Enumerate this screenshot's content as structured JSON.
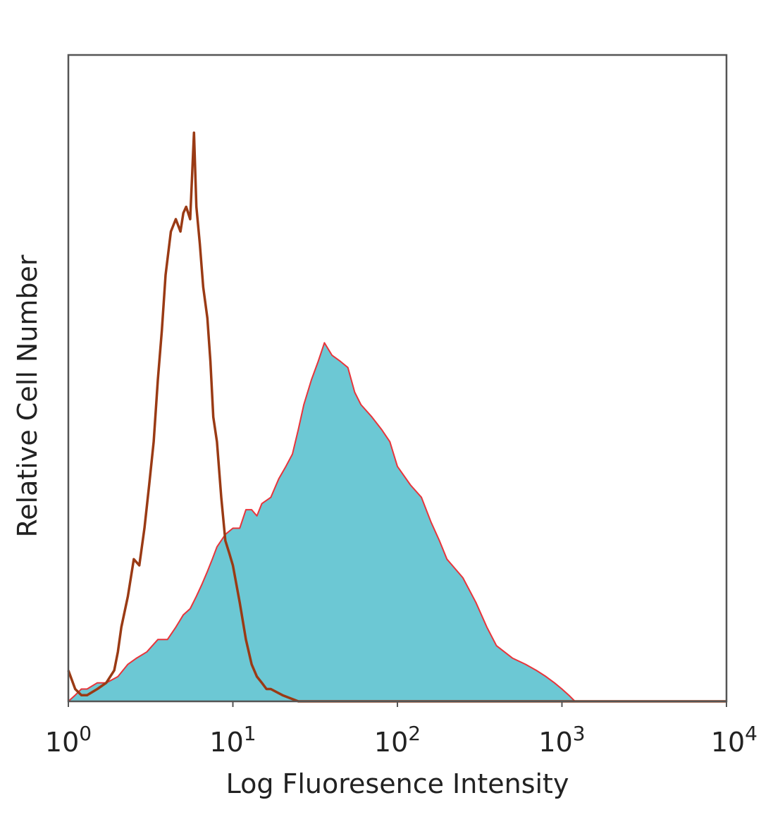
{
  "chart_data": {
    "type": "area",
    "title": "",
    "xlabel": "Log Fluoresence Intensity",
    "ylabel": "Relative Cell Number",
    "x_scale": "log",
    "xlim": [
      1,
      10000
    ],
    "ylim": [
      0,
      1
    ],
    "grid": false,
    "legend": "none",
    "x_ticks": [
      {
        "value": 1,
        "base": "10",
        "exp": "0"
      },
      {
        "value": 10,
        "base": "10",
        "exp": "1"
      },
      {
        "value": 100,
        "base": "10",
        "exp": "2"
      },
      {
        "value": 1000,
        "base": "10",
        "exp": "3"
      },
      {
        "value": 10000,
        "base": "10",
        "exp": "4"
      }
    ],
    "series": [
      {
        "style": "filled",
        "fill_color": "#6cc8d4",
        "line_color": "#e8343a",
        "x": [
          1.0,
          1.1,
          1.2,
          1.3,
          1.5,
          1.7,
          2.0,
          2.3,
          2.6,
          3.0,
          3.5,
          4.0,
          4.5,
          5.0,
          5.5,
          6.0,
          6.5,
          7.0,
          7.5,
          8.0,
          9.0,
          10,
          11,
          12,
          13,
          14,
          15,
          17,
          19,
          21,
          23,
          25,
          27,
          30,
          33,
          36,
          40,
          45,
          50,
          55,
          60,
          70,
          80,
          90,
          100,
          120,
          140,
          160,
          180,
          200,
          250,
          300,
          350,
          400,
          500,
          600,
          700,
          800,
          900,
          1000,
          1100,
          1200,
          1300,
          2000,
          5000,
          10000
        ],
        "y": [
          0.0,
          0.01,
          0.02,
          0.02,
          0.03,
          0.03,
          0.04,
          0.06,
          0.07,
          0.08,
          0.1,
          0.1,
          0.12,
          0.14,
          0.15,
          0.17,
          0.19,
          0.21,
          0.23,
          0.25,
          0.27,
          0.28,
          0.28,
          0.31,
          0.31,
          0.3,
          0.32,
          0.33,
          0.36,
          0.38,
          0.4,
          0.44,
          0.48,
          0.52,
          0.55,
          0.58,
          0.56,
          0.55,
          0.54,
          0.5,
          0.48,
          0.46,
          0.44,
          0.42,
          0.38,
          0.35,
          0.33,
          0.29,
          0.26,
          0.23,
          0.2,
          0.16,
          0.12,
          0.09,
          0.07,
          0.06,
          0.05,
          0.04,
          0.03,
          0.02,
          0.01,
          0.0,
          0.0,
          0.0,
          0.0,
          0.0
        ]
      },
      {
        "style": "outline",
        "line_color": "#9a3a14",
        "x": [
          1.0,
          1.1,
          1.2,
          1.3,
          1.5,
          1.7,
          1.9,
          2.0,
          2.1,
          2.3,
          2.5,
          2.7,
          2.9,
          3.1,
          3.3,
          3.5,
          3.7,
          3.9,
          4.2,
          4.5,
          4.8,
          5.0,
          5.2,
          5.5,
          5.8,
          6.0,
          6.3,
          6.6,
          7.0,
          7.3,
          7.6,
          8.0,
          8.5,
          9.0,
          9.5,
          10,
          11,
          12,
          13,
          14,
          15,
          16,
          17,
          20,
          25,
          30,
          10000
        ],
        "y": [
          0.05,
          0.02,
          0.01,
          0.01,
          0.02,
          0.03,
          0.05,
          0.08,
          0.12,
          0.17,
          0.23,
          0.22,
          0.28,
          0.35,
          0.42,
          0.52,
          0.6,
          0.69,
          0.76,
          0.78,
          0.76,
          0.79,
          0.8,
          0.78,
          0.92,
          0.8,
          0.74,
          0.67,
          0.62,
          0.55,
          0.46,
          0.42,
          0.33,
          0.26,
          0.24,
          0.22,
          0.16,
          0.1,
          0.06,
          0.04,
          0.03,
          0.02,
          0.02,
          0.01,
          0.0,
          0.0,
          0.0
        ]
      }
    ]
  }
}
